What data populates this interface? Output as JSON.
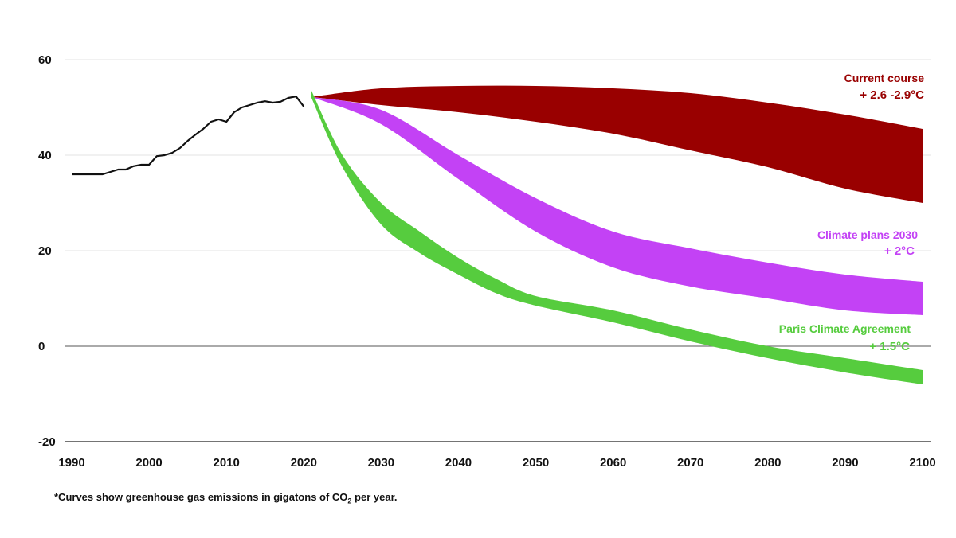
{
  "chart_data": {
    "type": "area",
    "title": "",
    "xlabel": "",
    "ylabel": "",
    "xlim": [
      1990,
      2100
    ],
    "ylim": [
      -20,
      60
    ],
    "grid": true,
    "x_ticks": [
      "1990",
      "2000",
      "2010",
      "2020",
      "2030",
      "2040",
      "2050",
      "2060",
      "2070",
      "2080",
      "2090",
      "2100"
    ],
    "y_ticks": [
      "60",
      "40",
      "20",
      "0",
      "-20"
    ],
    "historical": {
      "color": "#111111",
      "x": [
        1990,
        1994,
        1995,
        1996,
        1997,
        1998,
        1999,
        2000,
        2001,
        2002,
        2003,
        2004,
        2005,
        2006,
        2007,
        2008,
        2009,
        2010,
        2011,
        2012,
        2013,
        2014,
        2015,
        2016,
        2017,
        2018,
        2019,
        2020
      ],
      "y": [
        36,
        36,
        36.5,
        37,
        37,
        37.7,
        38,
        38,
        39.8,
        40,
        40.5,
        41.5,
        43,
        44.3,
        45.5,
        47,
        47.5,
        47,
        49,
        50,
        50.5,
        51,
        51.3,
        51,
        51.2,
        52,
        52.3,
        50.2
      ]
    },
    "series": [
      {
        "name": "Current course",
        "subtitle": "+ 2.6 -2.9°C",
        "color": "#990000",
        "x": [
          2021,
          2030,
          2040,
          2050,
          2060,
          2070,
          2080,
          2090,
          2100
        ],
        "upper": [
          52.2,
          54,
          54.5,
          54.5,
          54,
          53,
          51,
          48.5,
          45.5
        ],
        "lower": [
          52.2,
          50.5,
          49,
          47,
          44.5,
          41,
          37.5,
          33,
          30
        ]
      },
      {
        "name": "Climate plans 2030",
        "subtitle": "+ 2°C",
        "color": "#c342f5",
        "x": [
          2021,
          2030,
          2040,
          2050,
          2060,
          2070,
          2080,
          2090,
          2100
        ],
        "upper": [
          52.2,
          49.5,
          40,
          31,
          24,
          20.5,
          17.5,
          15,
          13.5
        ],
        "lower": [
          52.2,
          46.5,
          35,
          24,
          16.5,
          12.5,
          10,
          7.5,
          6.5
        ]
      },
      {
        "name": "Paris Climate Agreement",
        "subtitle": "+ 1.5°C",
        "color": "#56cc3e",
        "x": [
          2021,
          2025,
          2030,
          2035,
          2040,
          2045,
          2050,
          2060,
          2070,
          2080,
          2090,
          2100
        ],
        "upper": [
          53.5,
          40,
          30,
          24,
          18.5,
          14,
          10.5,
          7.5,
          3.5,
          0,
          -2.5,
          -5
        ],
        "lower": [
          52,
          37.5,
          25.5,
          19.5,
          15,
          11,
          8.5,
          5,
          1,
          -2.5,
          -5.5,
          -8
        ]
      }
    ],
    "footnote": "*Curves show greenhouse gas emissions in gigatons of CO",
    "footnote_subscript": "2",
    "footnote_end": " per year."
  }
}
